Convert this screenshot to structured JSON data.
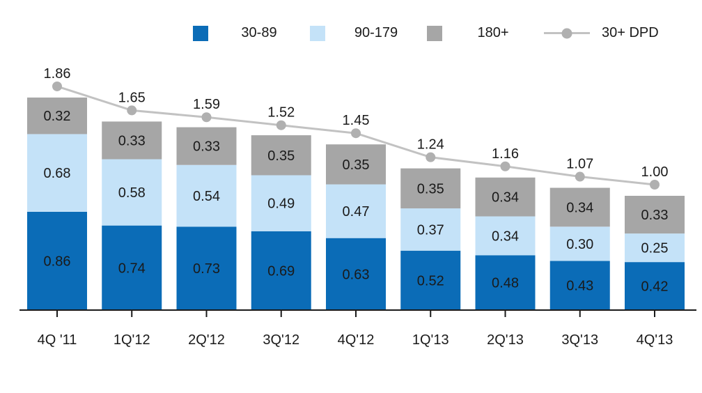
{
  "chart_data": {
    "type": "bar",
    "subtype": "stacked-column-with-line",
    "title": "",
    "xlabel": "",
    "ylabel": "",
    "grid": false,
    "legend_position": "top",
    "ylim": [
      0,
      2.2
    ],
    "value_format": "0.00",
    "categories": [
      "4Q '11",
      "1Q'12",
      "2Q'12",
      "3Q'12",
      "4Q'12",
      "1Q'13",
      "2Q'13",
      "3Q'13",
      "4Q'13"
    ],
    "series": [
      {
        "name": "30-89",
        "color": "#0B6CB7",
        "values": [
          0.86,
          0.74,
          0.73,
          0.69,
          0.63,
          0.52,
          0.48,
          0.43,
          0.42
        ]
      },
      {
        "name": "90-179",
        "color": "#C4E2F8",
        "values": [
          0.68,
          0.58,
          0.54,
          0.49,
          0.47,
          0.37,
          0.34,
          0.3,
          0.25
        ]
      },
      {
        "name": "180+",
        "color": "#A6A6A6",
        "values": [
          0.32,
          0.33,
          0.33,
          0.35,
          0.35,
          0.35,
          0.34,
          0.34,
          0.33
        ]
      }
    ],
    "line": {
      "name": "30+ DPD",
      "color": "#C2C2C2",
      "marker_color": "#B0B0B0",
      "values": [
        1.86,
        1.65,
        1.59,
        1.52,
        1.45,
        1.24,
        1.16,
        1.07,
        1.0
      ]
    },
    "axis_color": "#1A1A1A",
    "label_color": "#1A1A1A"
  }
}
